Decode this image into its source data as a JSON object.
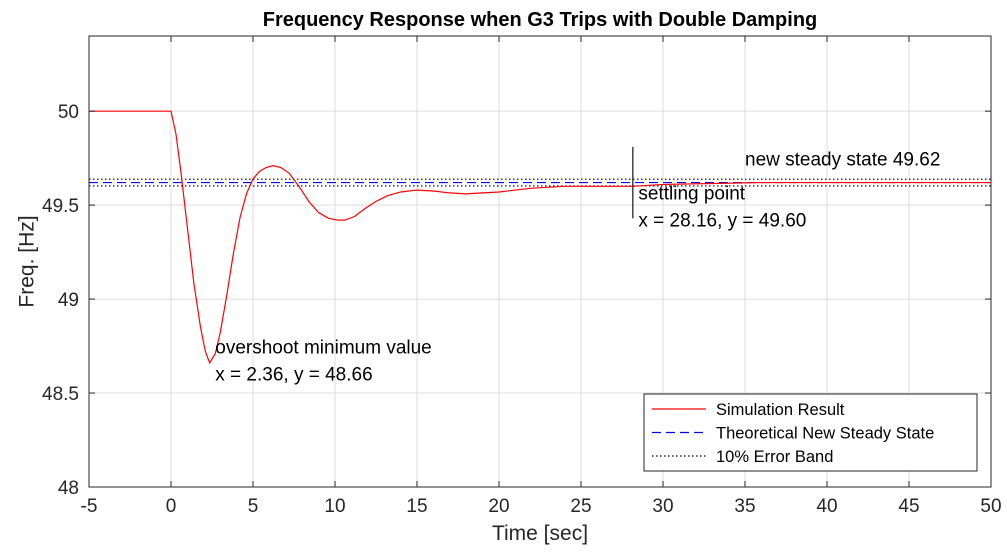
{
  "chart_data": {
    "type": "line",
    "title": "Frequency Response when G3 Trips with Double Damping",
    "xlabel": "Time [sec]",
    "ylabel": "Freq. [Hz]",
    "xlim": [
      -5,
      50
    ],
    "ylim": [
      48,
      50.4
    ],
    "xticks": [
      -5,
      0,
      5,
      10,
      15,
      20,
      25,
      30,
      35,
      40,
      45,
      50
    ],
    "xtick_labels": [
      "-5",
      "0",
      "5",
      "10",
      "15",
      "20",
      "25",
      "30",
      "35",
      "40",
      "45",
      "50"
    ],
    "yticks": [
      48,
      48.5,
      49,
      49.5,
      50
    ],
    "ytick_labels": [
      "48",
      "48.5",
      "49",
      "49.5",
      "50"
    ],
    "grid": true,
    "legend_position": "bottom-right",
    "series": [
      {
        "name": "Simulation Result",
        "color": "#ff0000",
        "style": "solid",
        "x": [
          -5,
          -0.01,
          0,
          0.3,
          0.6,
          1.0,
          1.4,
          1.8,
          2.1,
          2.36,
          2.7,
          3.0,
          3.4,
          3.8,
          4.2,
          4.6,
          5.0,
          5.4,
          5.8,
          6.2,
          6.7,
          7.2,
          7.8,
          8.4,
          9.0,
          9.6,
          10.2,
          10.6,
          11.2,
          11.8,
          12.5,
          13.2,
          14.0,
          15.0,
          16.0,
          17.0,
          18.0,
          19.0,
          20.0,
          21.0,
          22.0,
          24.0,
          26.0,
          28.16,
          30.0,
          33.0,
          36.0,
          40.0,
          45.0,
          50.0
        ],
        "y": [
          50.0,
          50.0,
          50.0,
          49.88,
          49.68,
          49.38,
          49.08,
          48.85,
          48.72,
          48.66,
          48.71,
          48.82,
          49.02,
          49.24,
          49.43,
          49.56,
          49.64,
          49.68,
          49.7,
          49.71,
          49.7,
          49.67,
          49.6,
          49.52,
          49.46,
          49.43,
          49.42,
          49.42,
          49.44,
          49.48,
          49.52,
          49.55,
          49.57,
          49.58,
          49.575,
          49.565,
          49.56,
          49.565,
          49.57,
          49.58,
          49.59,
          49.6,
          49.6,
          49.6,
          49.61,
          49.615,
          49.62,
          49.62,
          49.62,
          49.62
        ]
      },
      {
        "name": "Theoretical New Steady State",
        "color": "#0000ff",
        "style": "dashed",
        "x": [
          -5,
          50
        ],
        "y": [
          49.62,
          49.62
        ]
      },
      {
        "name": "10% Error Band",
        "color": "#000000",
        "style": "dotted",
        "x": [
          -5,
          50
        ],
        "y": [
          49.638,
          49.638
        ]
      }
    ],
    "extra_band_line": {
      "color": "#000000",
      "style": "dotted",
      "y": 49.602
    },
    "settling_marker": {
      "x": 28.16,
      "y_range": [
        49.43,
        49.81
      ]
    },
    "annotations": [
      {
        "lines": [
          "overshoot minimum value",
          "x = 2.36, y = 48.66"
        ],
        "x": 2.7,
        "y": 48.71
      },
      {
        "lines": [
          "settling point",
          "x = 28.16, y = 49.60"
        ],
        "x": 28.5,
        "y": 49.53
      },
      {
        "lines": [
          "new steady state 49.62"
        ],
        "x": 35.0,
        "y": 49.71
      }
    ]
  }
}
